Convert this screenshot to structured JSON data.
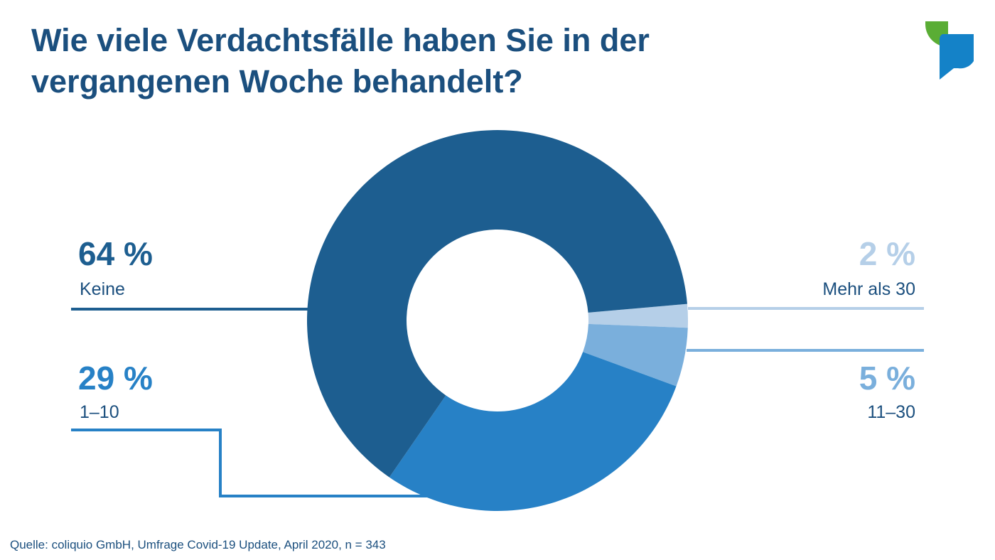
{
  "title": {
    "line1": "Wie viele Verdachtsfälle haben Sie in der",
    "line2": "vergangenen Woche behandelt?"
  },
  "source": "Quelle: coliquio GmbH, Umfrage Covid-19 Update, April 2020, n = 343",
  "logo": {
    "icon": "coliquio-speech-bubble-logo",
    "colors": [
      "#5aad35",
      "#1482c8"
    ]
  },
  "chart_data": {
    "type": "pie",
    "variant": "donut",
    "unit": "%",
    "slices": [
      {
        "label": "Mehr als 30",
        "value": 2,
        "display": "2 %",
        "color": "#b5cfe8"
      },
      {
        "label": "11–30",
        "value": 5,
        "display": "5 %",
        "color": "#7aafdc"
      },
      {
        "label": "1–10",
        "value": 29,
        "display": "29 %",
        "color": "#2781c6"
      },
      {
        "label": "Keine",
        "value": 64,
        "display": "64 %",
        "color": "#1d5e90"
      }
    ]
  }
}
